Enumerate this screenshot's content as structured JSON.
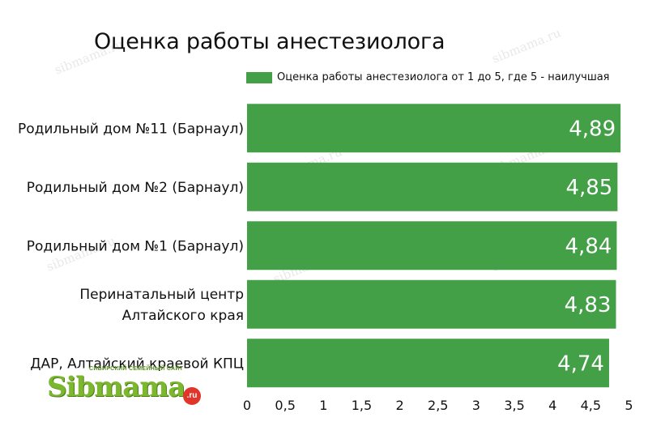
{
  "chart_data": {
    "type": "bar",
    "orientation": "horizontal",
    "title": "Оценка работы анестезиолога",
    "categories": [
      "Родильный дом №11 (Барнаул)",
      "Родильный дом №2 (Барнаул)",
      "Родильный дом №1 (Барнаул)",
      "Перинатальный центр Алтайского края",
      "ДАР, Алтайский краевой КПЦ"
    ],
    "category_lines": [
      [
        "Родильный дом №11 (Барнаул)"
      ],
      [
        "Родильный дом №2 (Барнаул)"
      ],
      [
        "Родильный дом №1 (Барнаул)"
      ],
      [
        "Перинатальный центр",
        "Алтайского края"
      ],
      [
        "ДАР, Алтайский краевой КПЦ"
      ]
    ],
    "series": [
      {
        "name": "Оценка работы анестезиолога от 1 до 5, где 5 - наилучшая",
        "values": [
          4.89,
          4.85,
          4.84,
          4.83,
          4.74
        ],
        "data_labels": [
          "4,89",
          "4,85",
          "4,84",
          "4,83",
          "4,74"
        ],
        "color": "#43a047"
      }
    ],
    "xlim": [
      0,
      4.89
    ],
    "xticks": [
      0,
      0.5,
      1,
      1.5,
      2,
      2.5,
      3,
      3.5,
      4,
      4.5,
      5
    ],
    "xtick_labels": [
      "0",
      "0,5",
      "1",
      "1,5",
      "2",
      "2,5",
      "3",
      "3,5",
      "4",
      "4,5",
      "5"
    ],
    "grid": false,
    "legend_position": "top-right"
  },
  "watermark": "sibmama.ru",
  "logo": {
    "brand": "Sibmama",
    "tagline": "СИБИРСКИЙ СЕМЕЙНЫЙ САЙТ",
    "suffix": ".ru",
    "color": "#7bb82e"
  }
}
